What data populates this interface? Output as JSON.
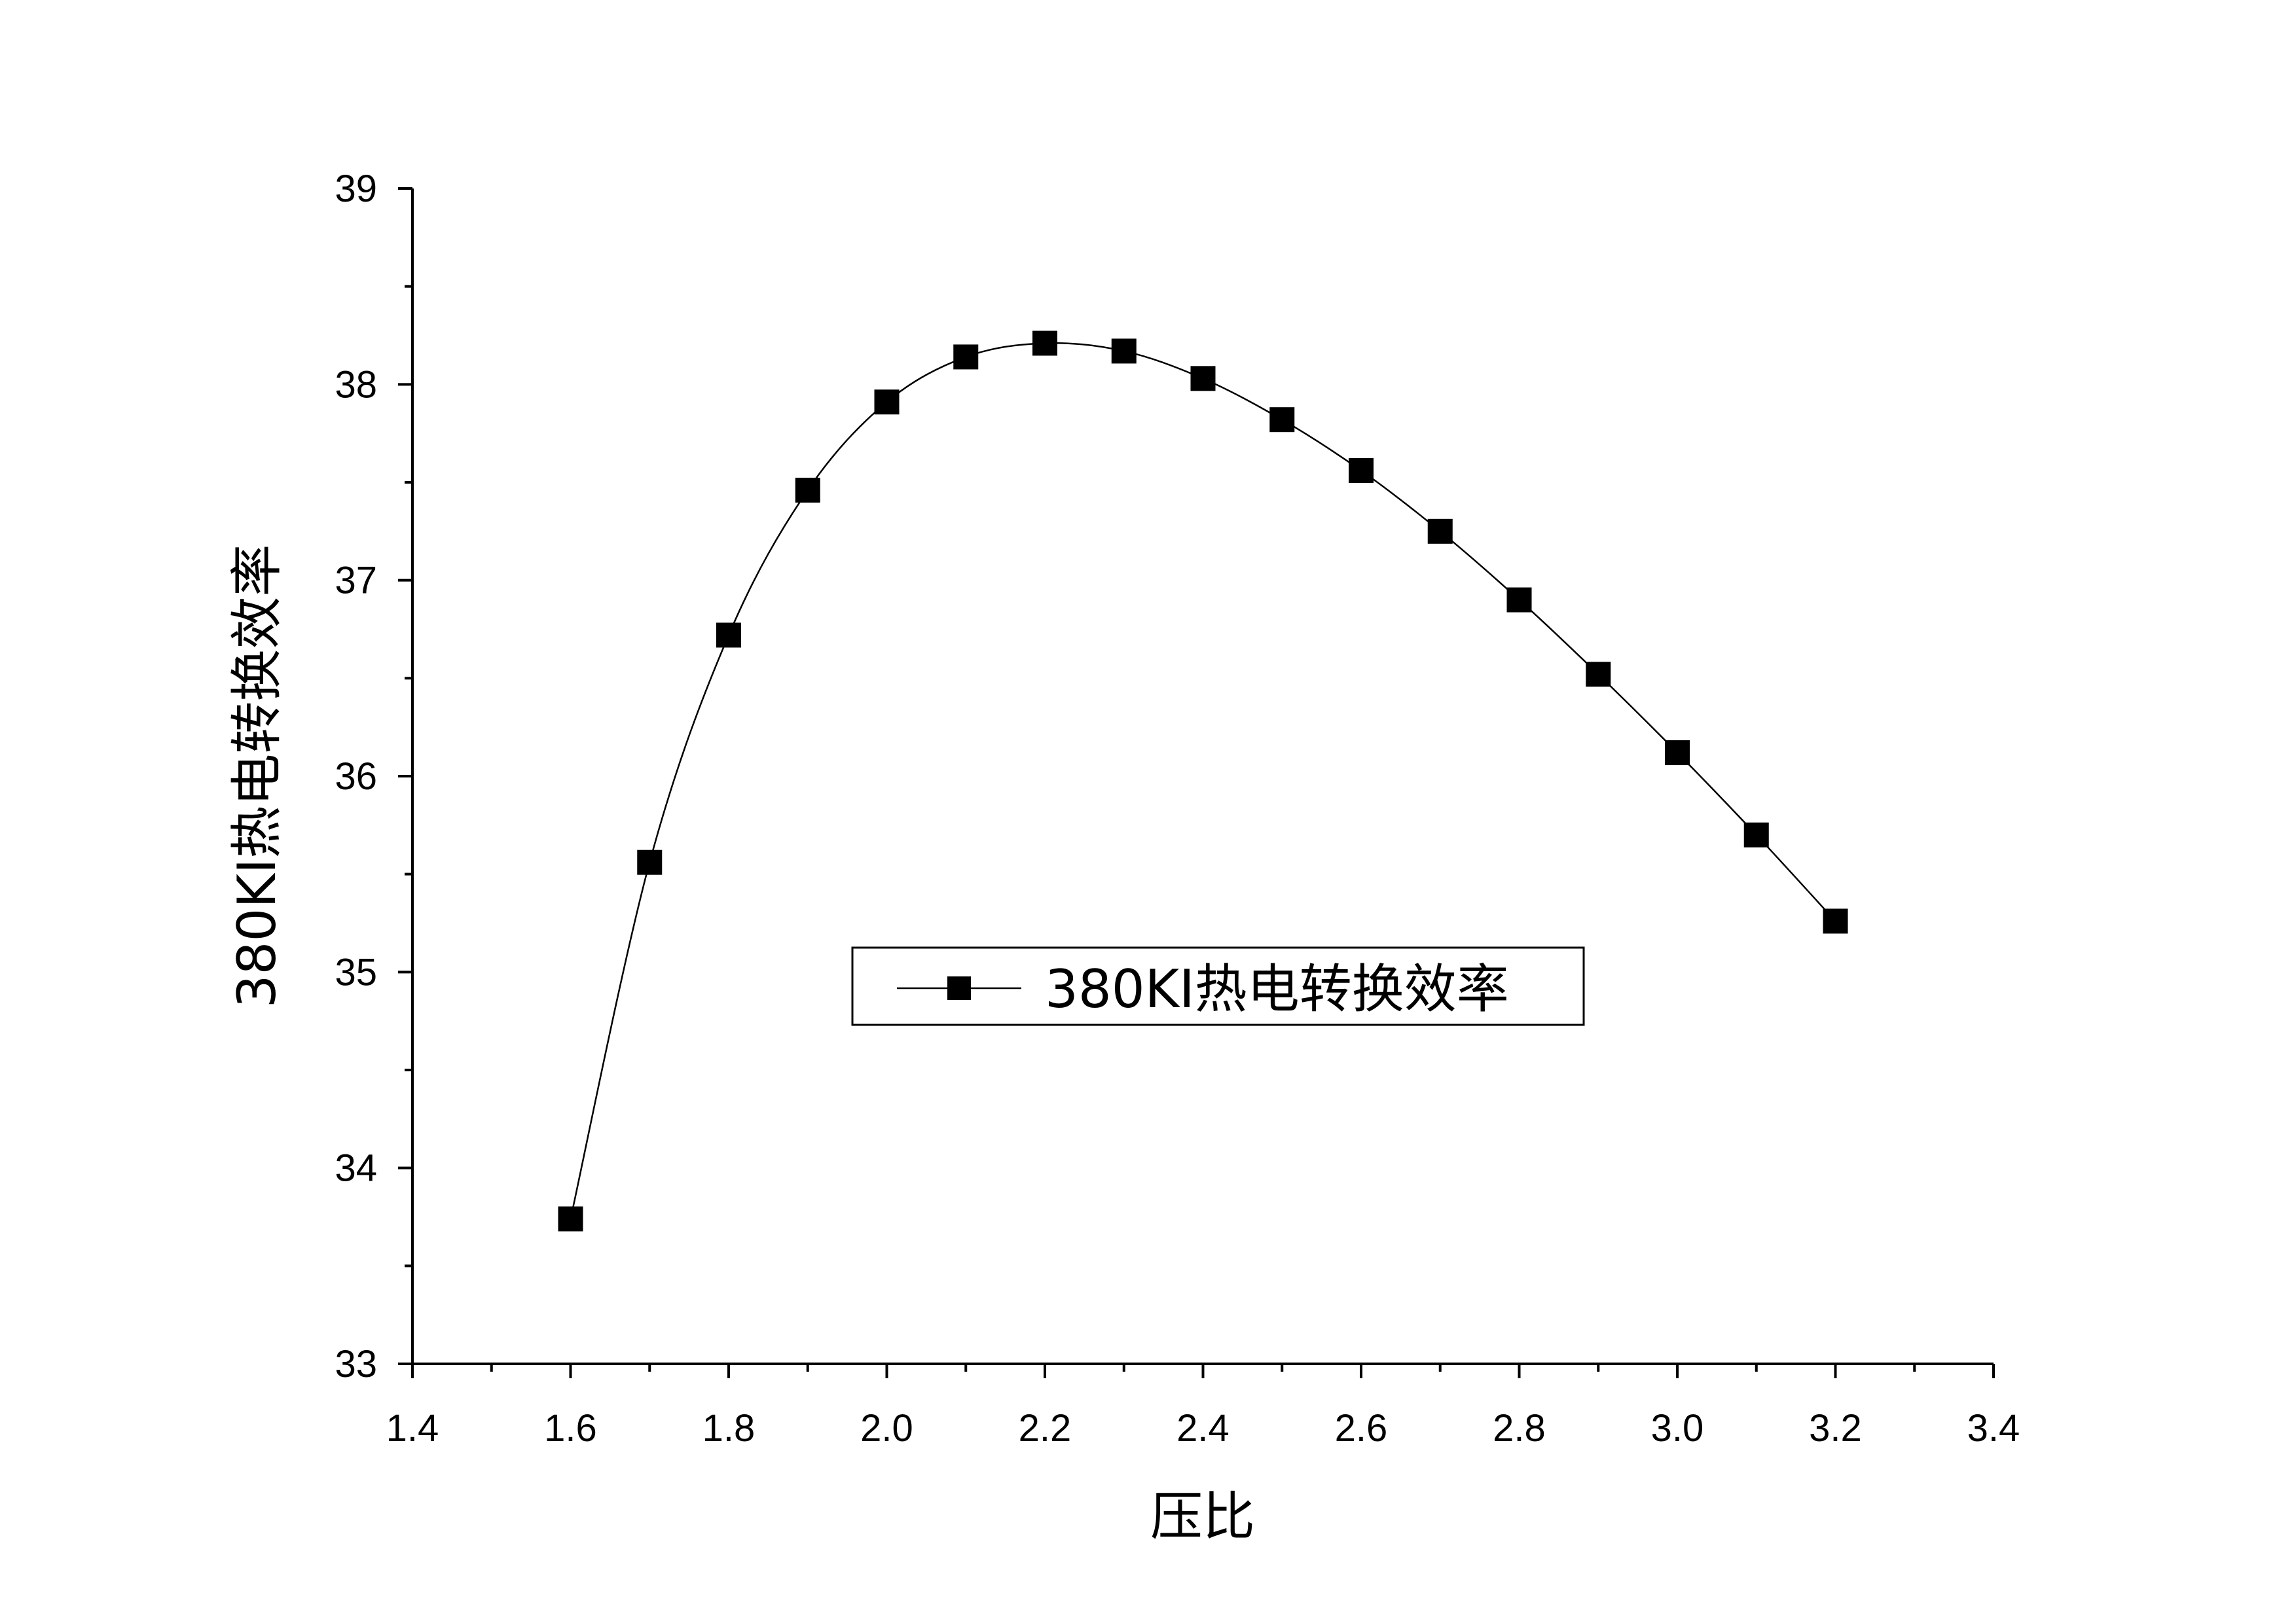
{
  "chart_data": {
    "type": "line",
    "xlabel": "压比",
    "ylabel": "380KI热电转换效率",
    "xlim": [
      1.4,
      3.4
    ],
    "ylim": [
      33,
      39
    ],
    "x_ticks": [
      "1.4",
      "1.6",
      "1.8",
      "2.0",
      "2.2",
      "2.4",
      "2.6",
      "2.8",
      "3.0",
      "3.2",
      "3.4"
    ],
    "y_ticks": [
      "33",
      "34",
      "35",
      "36",
      "37",
      "38",
      "39"
    ],
    "grid": false,
    "legend_position": "center",
    "marker": "square",
    "series": [
      {
        "name": "380KI热电转换效率",
        "color": "#000000",
        "x": [
          1.6,
          1.7,
          1.8,
          1.9,
          2.0,
          2.1,
          2.2,
          2.3,
          2.4,
          2.5,
          2.6,
          2.7,
          2.8,
          2.9,
          3.0,
          3.1,
          3.2
        ],
        "y": [
          33.74,
          35.56,
          36.72,
          37.46,
          37.91,
          38.14,
          38.21,
          38.17,
          38.03,
          37.82,
          37.56,
          37.25,
          36.9,
          36.52,
          36.12,
          35.7,
          35.26
        ]
      }
    ]
  }
}
